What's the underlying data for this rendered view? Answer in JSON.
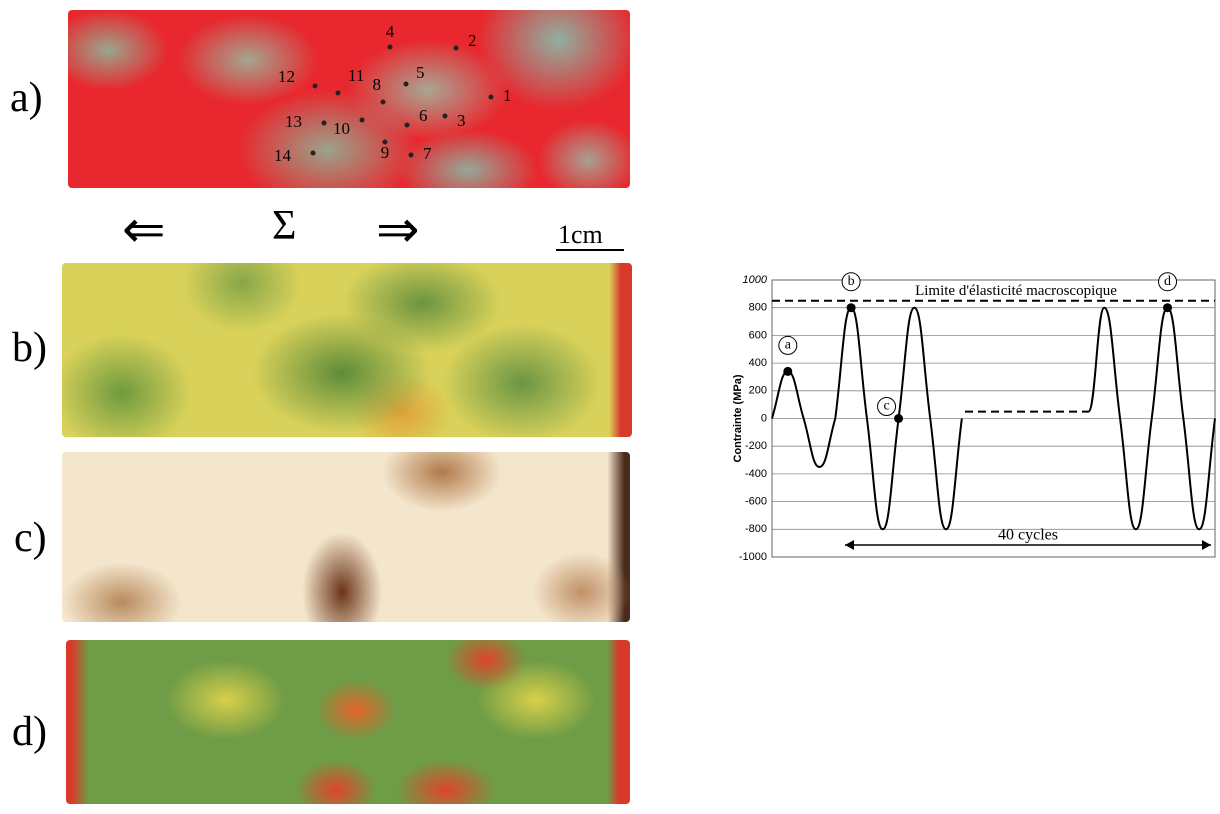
{
  "panels": {
    "labels": [
      "a)",
      "b)",
      "c)",
      "d)"
    ],
    "point_labels": [
      "1",
      "2",
      "3",
      "4",
      "5",
      "6",
      "7",
      "8",
      "9",
      "10",
      "11",
      "12",
      "13",
      "14"
    ],
    "load_symbol": "Σ",
    "left_arrow": "⇐",
    "right_arrow": "⇒",
    "scale_bar": "1cm"
  },
  "chart_data": {
    "type": "line",
    "ylabel": "Contrainte (MPa)",
    "ylim": [
      -1000,
      1000
    ],
    "yticks": [
      -1000,
      -800,
      -600,
      -400,
      -200,
      0,
      200,
      400,
      600,
      800,
      1000
    ],
    "grid": true,
    "series": [
      {
        "color": "#000000",
        "values": [
          0,
          340,
          0,
          -350,
          0,
          800,
          0,
          -800,
          0,
          800,
          0,
          -800,
          0,
          null,
          null,
          null,
          null,
          null,
          null,
          null,
          50,
          800,
          0,
          -800,
          0,
          800,
          0,
          -800,
          0
        ]
      }
    ],
    "reference_line": {
      "label": "Limite d'élasticité macroscopique",
      "value": 850
    },
    "hold_line_value": 50,
    "point_markers": [
      "a",
      "b",
      "c",
      "d"
    ],
    "span_annotation": "40 cycles"
  }
}
